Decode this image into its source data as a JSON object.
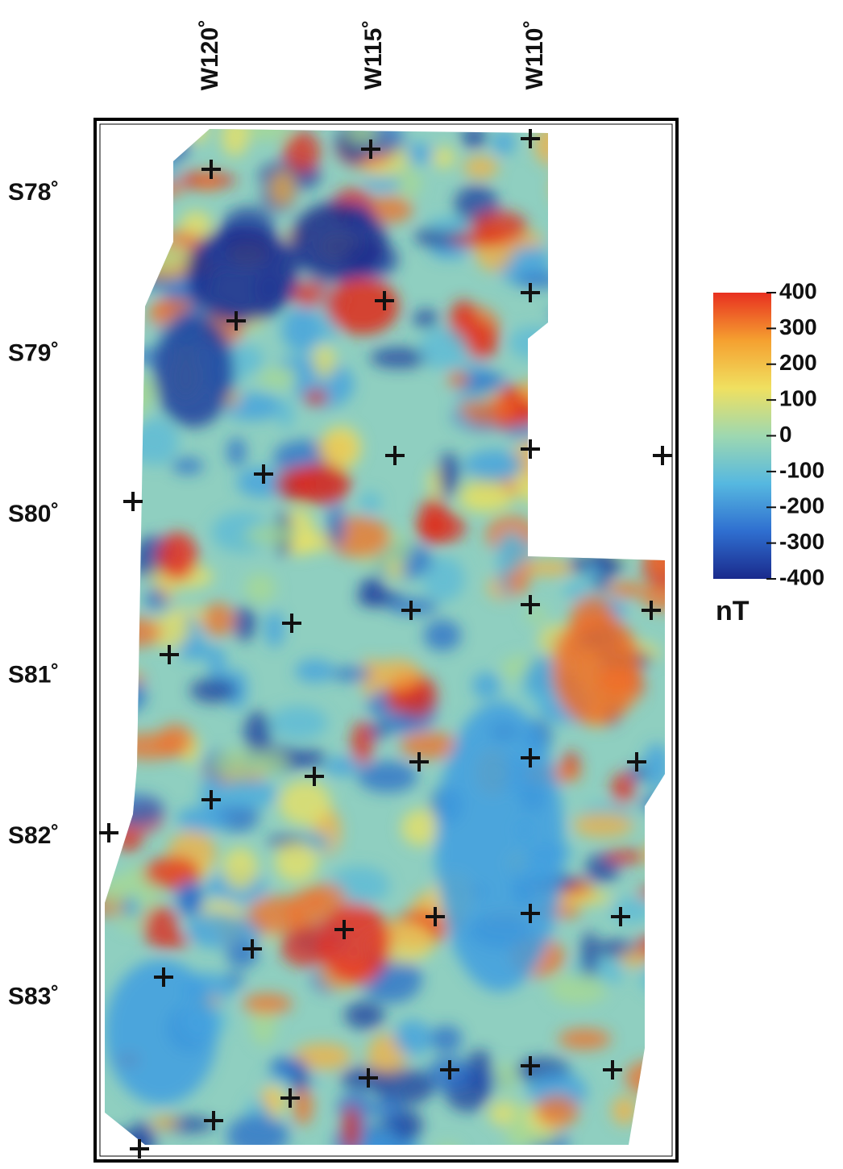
{
  "map": {
    "longitude_labels": [
      "W120˚",
      "W115˚",
      "W110˚"
    ],
    "latitude_labels": [
      "S78˚",
      "S79˚",
      "S80˚",
      "S81˚",
      "S82˚",
      "S83˚"
    ],
    "colorbar": {
      "range": [
        -400,
        400
      ],
      "ticks": [
        400,
        300,
        200,
        100,
        0,
        -100,
        -200,
        -300,
        -400
      ],
      "unit": "nT",
      "colors": [
        "#1a2a8c",
        "#2f6fd0",
        "#56b8e0",
        "#9ed8b0",
        "#f0e060",
        "#f5a030",
        "#e83020"
      ]
    }
  }
}
